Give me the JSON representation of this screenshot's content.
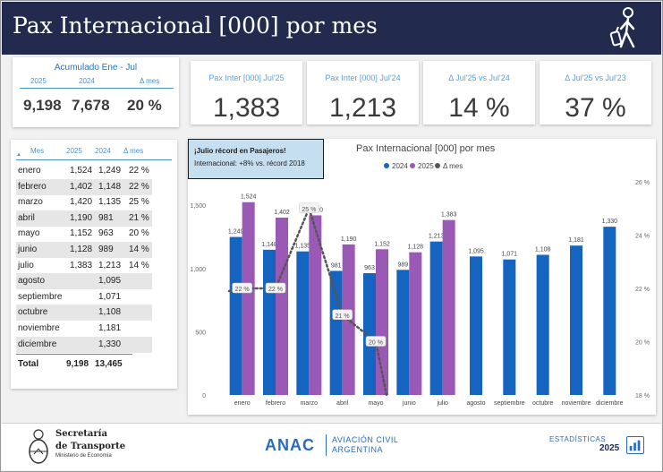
{
  "header": {
    "title": "Pax Internacional [000] por mes",
    "icon": "traveler-with-luggage-icon"
  },
  "accumulated": {
    "title": "Acumulado Ene - Jul",
    "headers": [
      "2025",
      "2024",
      "Δ mes"
    ],
    "values": [
      "9,198",
      "7,678",
      "20 %"
    ]
  },
  "kpis": [
    {
      "label": "Pax Inter [000] Jul'25",
      "value": "1,383"
    },
    {
      "label": "Pax Inter [000] Jul'24",
      "value": "1,213"
    },
    {
      "label": "Δ Jul'25 vs Jul'24",
      "value": "14 %"
    },
    {
      "label": "Δ Jul'25 vs Jul'23",
      "value": "37 %"
    }
  ],
  "table": {
    "headers": [
      "Mes",
      "2025",
      "2024",
      "Δ mes"
    ],
    "rows": [
      [
        "enero",
        "1,524",
        "1,249",
        "22 %"
      ],
      [
        "febrero",
        "1,402",
        "1,148",
        "22 %"
      ],
      [
        "marzo",
        "1,420",
        "1,135",
        "25 %"
      ],
      [
        "abril",
        "1,190",
        "981",
        "21 %"
      ],
      [
        "mayo",
        "1,152",
        "963",
        "20 %"
      ],
      [
        "junio",
        "1,128",
        "989",
        "14 %"
      ],
      [
        "julio",
        "1,383",
        "1,213",
        "14 %"
      ],
      [
        "agosto",
        "",
        "1,095",
        ""
      ],
      [
        "septiembre",
        "",
        "1,071",
        ""
      ],
      [
        "octubre",
        "",
        "1,108",
        ""
      ],
      [
        "noviembre",
        "",
        "1,181",
        ""
      ],
      [
        "diciembre",
        "",
        "1,330",
        ""
      ]
    ],
    "total": [
      "Total",
      "9,198",
      "13,465",
      ""
    ]
  },
  "banner": {
    "line1": "¡Julio récord en Pasajeros!",
    "line2": "Internacional: +8% vs. récord 2018"
  },
  "chart_data": {
    "type": "bar",
    "title": "Pax Internacional [000] por mes",
    "categories": [
      "enero",
      "febrero",
      "marzo",
      "abril",
      "mayo",
      "junio",
      "julio",
      "agosto",
      "septiembre",
      "octubre",
      "noviembre",
      "diciembre"
    ],
    "series": [
      {
        "name": "2024",
        "color": "#1565c0",
        "values": [
          1249,
          1148,
          1135,
          981,
          963,
          989,
          1213,
          1095,
          1071,
          1108,
          1181,
          1330
        ]
      },
      {
        "name": "2025",
        "color": "#9b59b6",
        "values": [
          1524,
          1402,
          1420,
          1190,
          1152,
          1128,
          1383,
          null,
          null,
          null,
          null,
          null
        ]
      }
    ],
    "line_series": {
      "name": "Δ mes",
      "color": "#555555",
      "values": [
        22,
        22,
        25,
        21,
        20,
        null,
        null,
        null,
        null,
        null,
        null,
        null
      ],
      "labels": [
        "22 %",
        "22 %",
        "25 %",
        "21 %",
        "20 %"
      ]
    },
    "ylim": [
      0,
      1600
    ],
    "yticks": [
      0,
      500,
      1000,
      1500
    ],
    "ytick_labels": [
      "0",
      "500",
      "1,000",
      "1,500"
    ],
    "y2lim": [
      18,
      26
    ],
    "y2ticks": [
      18,
      20,
      22,
      24,
      26
    ],
    "y2tick_labels": [
      "18 %",
      "20 %",
      "22 %",
      "24 %",
      "26 %"
    ],
    "legend_position": "top",
    "grid": false
  },
  "footer": {
    "sec_line1": "Secretaría",
    "sec_line2": "de Transporte",
    "sec_line3": "Ministerio de Economía",
    "anac": "ANAC",
    "anac_sub1": "AVIACIÓN CIVIL",
    "anac_sub2": "ARGENTINA",
    "est_line1": "ESTADÍSTICAS",
    "est_line2": "2025"
  }
}
